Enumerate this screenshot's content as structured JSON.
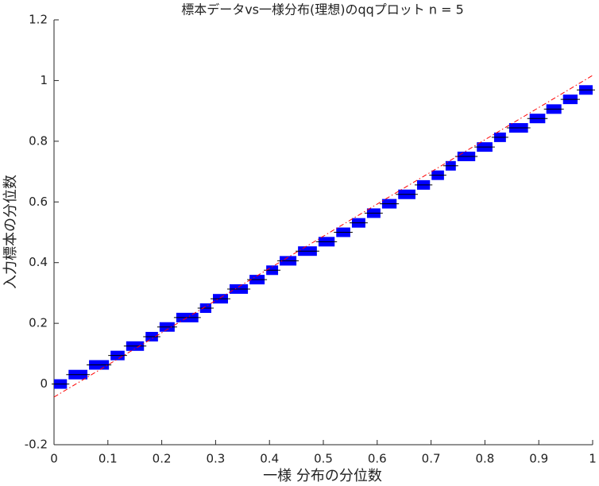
{
  "chart_data": {
    "type": "step-block",
    "title": "標本データvs一様分布(理想)のqqプロット n = 5",
    "x_label": "一様 分布の分位数",
    "y_label": "入力標本の分位数",
    "color": "#0000ff",
    "xlim": [
      0,
      1
    ],
    "ylim": [
      -0.2,
      1.2
    ],
    "xticks": [
      0,
      0.1,
      0.2,
      0.3,
      0.4,
      0.5,
      0.6,
      0.7,
      0.8,
      0.9,
      1
    ],
    "yticks": [
      -0.2,
      0,
      0.2,
      0.4,
      0.6,
      0.8,
      1,
      1.2
    ],
    "x_start": [
      0,
      0.027,
      0.065,
      0.105,
      0.134,
      0.17,
      0.196,
      0.227,
      0.271,
      0.295,
      0.326,
      0.363,
      0.394,
      0.419,
      0.453,
      0.491,
      0.524,
      0.553,
      0.581,
      0.609,
      0.639,
      0.674,
      0.701,
      0.727,
      0.749,
      0.785,
      0.817,
      0.845,
      0.883,
      0.914,
      0.945,
      0.975
    ],
    "x_end": [
      0.024,
      0.062,
      0.102,
      0.131,
      0.167,
      0.193,
      0.224,
      0.268,
      0.292,
      0.323,
      0.36,
      0.391,
      0.416,
      0.45,
      0.488,
      0.521,
      0.55,
      0.578,
      0.606,
      0.636,
      0.671,
      0.698,
      0.724,
      0.746,
      0.782,
      0.814,
      0.839,
      0.88,
      0.912,
      0.942,
      0.972,
      1
    ],
    "values": [
      0,
      0.031,
      0.063,
      0.094,
      0.125,
      0.156,
      0.188,
      0.219,
      0.25,
      0.281,
      0.313,
      0.344,
      0.375,
      0.406,
      0.438,
      0.469,
      0.5,
      0.531,
      0.563,
      0.594,
      0.625,
      0.656,
      0.688,
      0.719,
      0.75,
      0.781,
      0.813,
      0.844,
      0.875,
      0.906,
      0.938,
      0.969
    ],
    "reference_line": {
      "color": "#ff0000",
      "x": [
        0,
        1
      ],
      "values": [
        -0.043,
        1.017
      ]
    }
  }
}
